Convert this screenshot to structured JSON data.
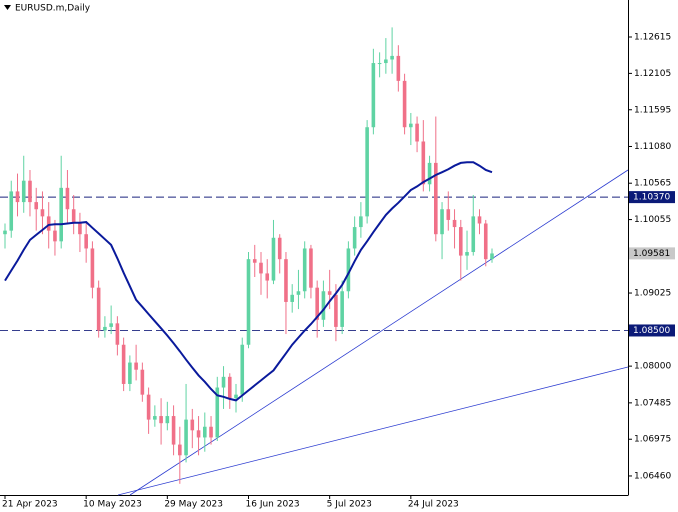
{
  "chart_data": {
    "type": "candlestick",
    "title": "EURUSD.m,Daily",
    "categories": [
      "21 Apr 2023",
      null,
      null,
      null,
      null,
      null,
      null,
      null,
      null,
      null,
      null,
      null,
      null,
      "10 May 2023",
      null,
      null,
      null,
      null,
      null,
      null,
      null,
      null,
      null,
      null,
      null,
      null,
      "29 May 2023",
      null,
      null,
      null,
      null,
      null,
      null,
      null,
      null,
      null,
      null,
      null,
      null,
      "16 Jun 2023",
      null,
      null,
      null,
      null,
      null,
      null,
      null,
      null,
      null,
      null,
      null,
      null,
      "5 Jul 2023",
      null,
      null,
      null,
      null,
      null,
      null,
      null,
      null,
      null,
      null,
      null,
      null,
      "24 Jul 2023",
      null,
      null,
      null,
      null,
      null,
      null,
      null,
      null,
      null,
      null,
      null,
      null,
      null
    ],
    "open": [
      1.0985,
      1.099,
      1.1045,
      1.103,
      1.106,
      1.103,
      1.102,
      1.101,
      1.099,
      1.0975,
      1.105,
      1.102,
      1.1,
      1.0985,
      1.0965,
      1.091,
      1.085,
      1.0855,
      1.086,
      1.083,
      1.0775,
      1.0805,
      1.0795,
      1.076,
      1.0725,
      1.073,
      1.072,
      1.073,
      1.069,
      1.0675,
      1.0725,
      1.071,
      1.07,
      1.0715,
      1.07,
      1.077,
      1.0785,
      1.0755,
      1.076,
      1.083,
      1.095,
      1.0945,
      1.093,
      1.092,
      1.098,
      1.095,
      1.089,
      1.09,
      1.0905,
      1.0965,
      1.091,
      1.0865,
      1.0905,
      1.09,
      1.0855,
      1.0905,
      1.0965,
      1.0995,
      1.101,
      1.1135,
      1.1225,
      1.1225,
      1.123,
      1.1235,
      1.12,
      1.1135,
      1.114,
      1.1115,
      1.1055,
      1.1085,
      1.0985,
      1.102,
      1.1005,
      1.0995,
      1.0955,
      1.096,
      1.101,
      1.1,
      1.095
    ],
    "high": [
      1.1,
      1.106,
      1.107,
      1.1095,
      1.1075,
      1.105,
      1.1045,
      1.103,
      1.1005,
      1.1095,
      1.1075,
      1.104,
      1.1015,
      1.1,
      1.0975,
      1.092,
      1.087,
      1.0885,
      1.087,
      1.084,
      1.0815,
      1.083,
      1.0805,
      1.077,
      1.0745,
      1.0755,
      1.075,
      1.0745,
      1.0715,
      1.0775,
      1.074,
      1.073,
      1.0735,
      1.073,
      1.0785,
      1.08,
      1.079,
      1.0775,
      1.084,
      1.096,
      1.097,
      1.096,
      1.095,
      1.1005,
      1.0985,
      1.096,
      1.0915,
      1.0935,
      1.0975,
      1.097,
      1.092,
      1.092,
      1.0935,
      1.0915,
      1.092,
      1.0975,
      1.101,
      1.103,
      1.1145,
      1.1245,
      1.124,
      1.126,
      1.1275,
      1.125,
      1.121,
      1.1155,
      1.115,
      1.1145,
      1.1095,
      1.115,
      1.103,
      1.1045,
      1.102,
      1.1005,
      1.099,
      1.104,
      1.102,
      1.1005,
      1.0965
    ],
    "low": [
      1.0965,
      1.098,
      1.101,
      1.1015,
      1.101,
      1.099,
      1.0985,
      1.0965,
      1.0955,
      1.0965,
      1.1,
      1.0985,
      1.096,
      1.0945,
      1.0895,
      1.084,
      1.084,
      1.0845,
      1.0815,
      1.0765,
      1.0765,
      1.078,
      1.075,
      1.0705,
      1.0715,
      1.069,
      1.071,
      1.0675,
      1.0635,
      1.0665,
      1.0685,
      1.0675,
      1.068,
      1.069,
      1.0695,
      1.074,
      1.074,
      1.0735,
      1.075,
      1.0825,
      1.0925,
      1.09,
      1.0895,
      1.0915,
      1.093,
      1.0845,
      1.0875,
      1.088,
      1.0895,
      1.0895,
      1.084,
      1.0855,
      1.088,
      1.0835,
      1.0845,
      1.0895,
      1.0955,
      1.098,
      1.1,
      1.1125,
      1.1205,
      1.121,
      1.121,
      1.1185,
      1.1125,
      1.111,
      1.11,
      1.1045,
      1.1045,
      1.0975,
      1.095,
      1.099,
      1.0965,
      1.092,
      1.0935,
      1.0955,
      1.0985,
      1.094,
      1.0945
    ],
    "close": [
      1.099,
      1.1045,
      1.103,
      1.106,
      1.103,
      1.102,
      1.101,
      1.099,
      1.0975,
      1.105,
      1.102,
      1.1,
      1.0985,
      1.0965,
      1.091,
      1.085,
      1.0855,
      1.086,
      1.083,
      1.0775,
      1.0805,
      1.0795,
      1.076,
      1.0725,
      1.073,
      1.072,
      1.073,
      1.069,
      1.0675,
      1.0725,
      1.071,
      1.07,
      1.0715,
      1.07,
      1.077,
      1.0785,
      1.0755,
      1.076,
      1.083,
      1.095,
      1.0945,
      1.093,
      1.092,
      1.098,
      1.095,
      1.089,
      1.09,
      1.0905,
      1.0965,
      1.091,
      1.0865,
      1.0905,
      1.09,
      1.0855,
      1.0905,
      1.0965,
      1.0995,
      1.101,
      1.1135,
      1.1225,
      1.1225,
      1.123,
      1.1235,
      1.12,
      1.1135,
      1.114,
      1.1115,
      1.1055,
      1.1085,
      1.0985,
      1.102,
      1.1005,
      1.0995,
      1.0955,
      1.096,
      1.101,
      1.1,
      1.095,
      1.0958
    ],
    "ma": [
      1.092,
      1.0934,
      1.0948,
      1.0963,
      1.0977,
      1.0984,
      1.0991,
      1.0998,
      1.0999,
      1.0999,
      1.1,
      1.1001,
      1.1001,
      1.1002,
      1.0994,
      1.0986,
      1.0978,
      1.097,
      1.0951,
      1.0931,
      1.0912,
      1.0893,
      1.0883,
      1.0873,
      1.0863,
      1.0853,
      1.0843,
      1.0832,
      1.0821,
      1.0809,
      1.0798,
      1.0787,
      1.0778,
      1.0768,
      1.0759,
      1.0757,
      1.0754,
      1.0752,
      1.0759,
      1.0766,
      1.0773,
      1.078,
      1.0787,
      1.0794,
      1.0806,
      1.0818,
      1.083,
      1.084,
      1.085,
      1.0859,
      1.0869,
      1.0879,
      1.0891,
      1.0902,
      1.0914,
      1.093,
      1.0947,
      1.0963,
      1.0975,
      1.0988,
      1.1,
      1.1012,
      1.1021,
      1.1029,
      1.1038,
      1.1047,
      1.1052,
      1.1058,
      1.1063,
      1.1068,
      1.1072,
      1.1076,
      1.1081,
      1.1085,
      1.1086,
      1.1086,
      1.1081,
      1.1075,
      1.1072
    ],
    "ma_color": "#0a1a9c",
    "bull_color": "#5fd3a3",
    "bear_color": "#f07088",
    "ylim": [
      1.06193,
      1.13134
    ],
    "yticks": [
      1.12615,
      1.12105,
      1.11595,
      {
        "value": 1.1108,
        "label": "1.11080"
      },
      1.10565,
      1.10055,
      1.09025,
      {
        "value": 1.08,
        "label": "1.08000"
      },
      1.07485,
      1.06975,
      {
        "value": 1.0646,
        "label": "1.06460"
      }
    ],
    "levels": [
      {
        "value": 1.1037,
        "label": "1.10370"
      },
      {
        "value": 1.085,
        "label": "1.08500"
      }
    ],
    "current_price": 1.09581
  }
}
